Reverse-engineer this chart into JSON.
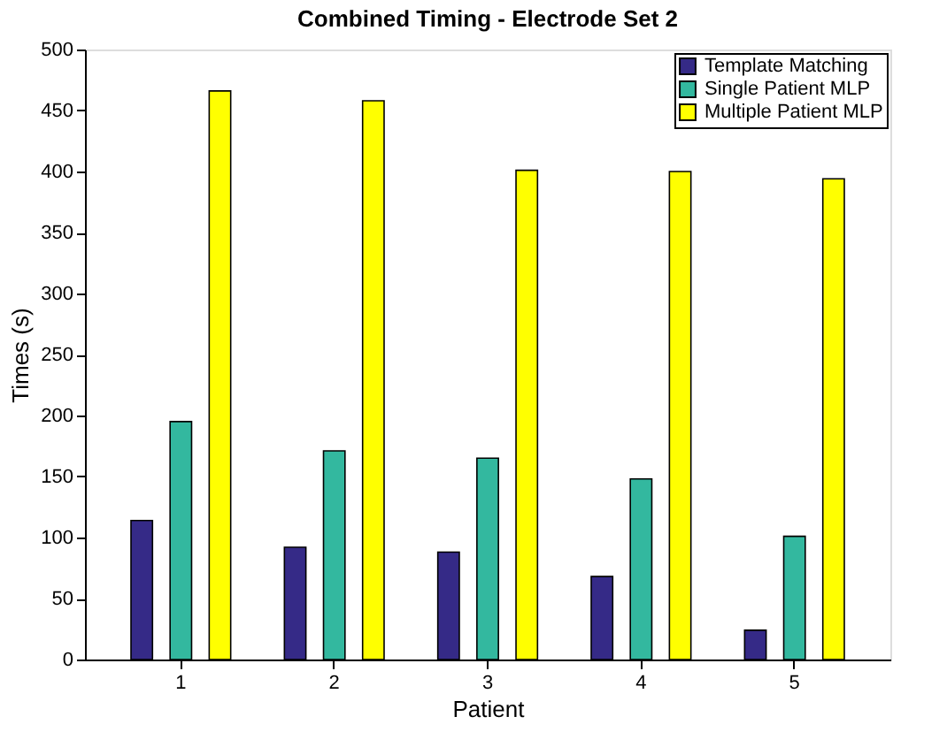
{
  "chart_data": {
    "type": "bar",
    "title": "Combined Timing - Electrode Set 2",
    "xlabel": "Patient",
    "ylabel": "Times (s)",
    "categories": [
      "1",
      "2",
      "3",
      "4",
      "5"
    ],
    "series": [
      {
        "name": "Template Matching",
        "color": "#352a87",
        "values": [
          114,
          92,
          88,
          68,
          24
        ]
      },
      {
        "name": "Single Patient MLP",
        "color": "#33b89f",
        "values": [
          195,
          171,
          165,
          148,
          101
        ]
      },
      {
        "name": "Multiple Patient MLP",
        "color": "#ffff00",
        "values": [
          466,
          458,
          401,
          400,
          394
        ]
      }
    ],
    "ylim": [
      0,
      500
    ],
    "yticks": [
      0,
      50,
      100,
      150,
      200,
      250,
      300,
      350,
      400,
      450,
      500
    ],
    "grid": false,
    "legend": "top right"
  }
}
